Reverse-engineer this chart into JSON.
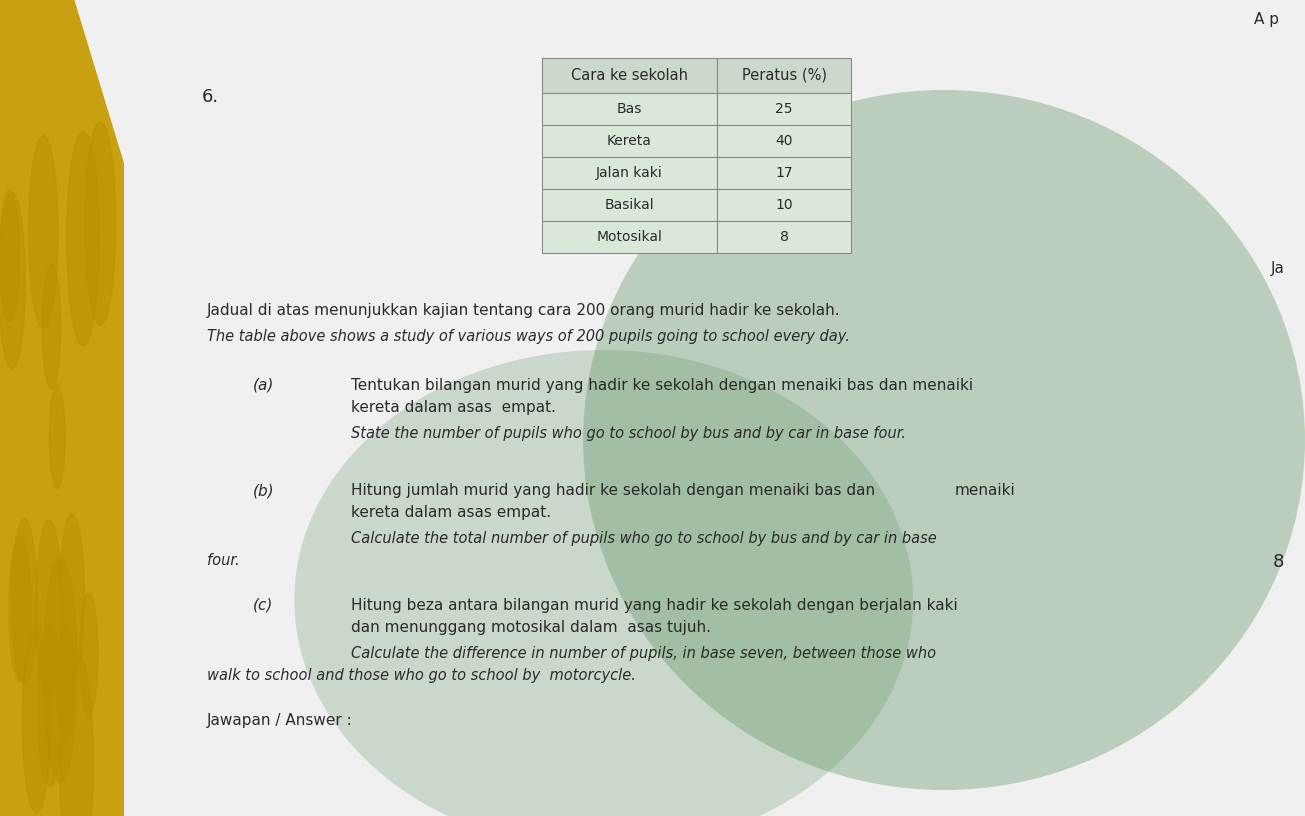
{
  "question_number": "6.",
  "table_header": [
    "Cara ke sekolah",
    "Peratus (%)"
  ],
  "table_rows": [
    [
      "Bas",
      "25"
    ],
    [
      "Kereta",
      "40"
    ],
    [
      "Jalan kaki",
      "17"
    ],
    [
      "Basikal",
      "10"
    ],
    [
      "Motosikal",
      "8"
    ]
  ],
  "text_intro_malay": "Jadual di atas menunjukkan kajian tentang cara 200 orang murid hadir ke sekolah.",
  "text_intro_english": "The table above shows a study of various ways of 200 pupils going to school every day.",
  "part_a_label": "(a)",
  "part_a_malay_line1": "Tentukan bilangan murid yang hadir ke sekolah dengan menaiki bas dan menaiki",
  "part_a_malay_line2": "kereta dalam asas  empat.",
  "part_a_english": "State the number of pupils who go to school by bus and by car in base four.",
  "part_b_label": "(b)",
  "part_b_malay_line1": "Hitung jumlah murid yang hadir ke sekolah dengan menaiki bas dan",
  "part_b_malay_word": "menaiki",
  "part_b_malay_line2": "kereta dalam asas empat.",
  "part_b_english_line1": "Calculate the total number of pupils who go to school by bus and by car in base",
  "part_b_english_line2": "four.",
  "part_c_label": "(c)",
  "part_c_malay_line1": "Hitung beza antara bilangan murid yang hadir ke sekolah dengan berjalan kaki",
  "part_c_malay_line2": "dan menunggang motosikal dalam  asas tujuh.",
  "part_c_english_line1": "Calculate the difference in number of pupils, in base seven, between those who",
  "part_c_english_line2": "walk to school and those who go to school by  motorcycle.",
  "answer_label": "Jawapan / Answer :",
  "right_number": "8",
  "top_right_text": "A p",
  "right_side_text": "Ja",
  "page_bg": "#f0f0f0",
  "left_bg": "#3a6b5a",
  "yellow_color": "#c8a010",
  "table_col1_bg": "#d8e8d8",
  "table_col2_bg": "#d8e8d8",
  "table_header_bg": "#c8d8c8",
  "green_overlay": "#4a7a50",
  "text_dark": "#2a2a2a",
  "line_color": "#aaaaaa"
}
